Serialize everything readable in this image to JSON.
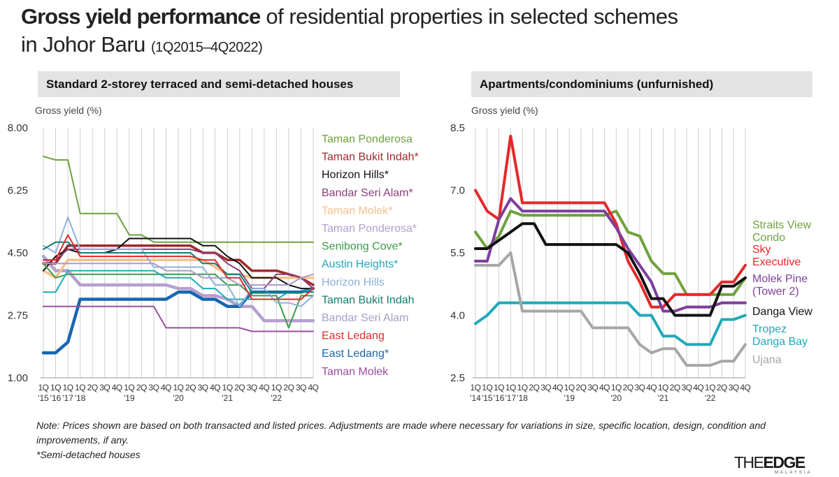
{
  "page": {
    "title_bold": "Gross yield performance",
    "title_rest": "of residential properties in selected schemes",
    "title_line2": "in Johor Baru",
    "title_period": "(1Q2015–4Q2022)",
    "notes": [
      "Note: Prices shown are based on both transacted and listed prices. Adjustments are made where necessary for variations in size, specific location, design, condition and improvements, if any.",
      "*Semi-detached houses"
    ],
    "brand": "THEEDGE",
    "brand_sub": "MALAYSIA"
  },
  "chart_data": [
    {
      "type": "line",
      "title": "Standard 2-storey terraced and semi-detached houses",
      "ylabel": "Gross yield (%)",
      "ylim": [
        1.0,
        8.0
      ],
      "yticks": [
        "8.00",
        "6.25",
        "4.50",
        "2.75",
        "1.00"
      ],
      "yticks_values": [
        8.0,
        6.25,
        4.5,
        2.75,
        1.0
      ],
      "x": [
        "1Q15",
        "1Q16",
        "1Q17",
        "1Q18",
        "2Q18",
        "3Q18",
        "4Q18",
        "1Q19",
        "2Q19",
        "3Q19",
        "4Q19",
        "1Q20",
        "2Q20",
        "3Q20",
        "4Q20",
        "1Q21",
        "2Q21",
        "3Q21",
        "4Q21",
        "1Q22",
        "2Q22",
        "3Q22",
        "4Q22"
      ],
      "xtick_quarters": [
        "1Q",
        "1Q",
        "1Q",
        "1Q",
        "2Q",
        "3Q",
        "4Q",
        "1Q",
        "2Q",
        "3Q",
        "4Q",
        "1Q",
        "2Q",
        "3Q",
        "4Q",
        "1Q",
        "2Q",
        "3Q",
        "4Q",
        "1Q",
        "2Q",
        "3Q",
        "4Q"
      ],
      "xtick_years": [
        "'15",
        "'16",
        "'17",
        "'18",
        "",
        "",
        "",
        "'19",
        "",
        "",
        "",
        "'20",
        "",
        "",
        "",
        "'21",
        "",
        "",
        "",
        "'22",
        "",
        "",
        ""
      ],
      "grid": true,
      "legend_position": "right",
      "series": [
        {
          "name": "Taman Ponderosa",
          "color": "#6fa13d",
          "width": 2,
          "values": [
            7.2,
            7.1,
            7.1,
            5.6,
            5.6,
            5.6,
            5.6,
            5.0,
            5.0,
            4.8,
            4.8,
            4.8,
            4.8,
            4.8,
            4.8,
            4.8,
            4.8,
            4.8,
            4.8,
            4.8,
            4.8,
            4.8,
            4.8
          ]
        },
        {
          "name": "Taman Bukit Indah*",
          "color": "#9e2a2b",
          "width": 3.5,
          "values": [
            4.2,
            4.2,
            4.7,
            4.7,
            4.7,
            4.7,
            4.7,
            4.7,
            4.7,
            4.7,
            4.7,
            4.7,
            4.7,
            4.5,
            4.5,
            4.3,
            4.3,
            4.0,
            4.0,
            4.0,
            3.9,
            3.8,
            3.6
          ]
        },
        {
          "name": "Horizon Hills*",
          "color": "#111111",
          "width": 2,
          "values": [
            4.0,
            4.4,
            4.6,
            4.5,
            4.5,
            4.5,
            4.6,
            4.9,
            4.9,
            4.9,
            4.9,
            4.9,
            4.9,
            4.7,
            4.7,
            4.4,
            4.2,
            3.8,
            3.8,
            3.8,
            3.6,
            3.5,
            3.5
          ]
        },
        {
          "name": "Bandar Seri Alam*",
          "color": "#8b3d7a",
          "width": 2,
          "values": [
            4.3,
            4.3,
            4.6,
            4.6,
            4.6,
            4.6,
            4.6,
            4.6,
            4.6,
            4.6,
            4.6,
            4.6,
            4.6,
            4.5,
            4.5,
            4.2,
            4.0,
            3.5,
            3.5,
            3.9,
            3.9,
            3.8,
            3.5
          ]
        },
        {
          "name": "Taman Molek*",
          "color": "#f7c18a",
          "width": 3.5,
          "values": [
            4.0,
            3.8,
            4.3,
            4.3,
            4.3,
            4.3,
            4.3,
            4.3,
            4.3,
            4.3,
            4.3,
            4.3,
            4.3,
            4.3,
            4.1,
            3.9,
            3.9,
            3.8,
            3.8,
            3.8,
            3.8,
            3.8,
            3.8
          ]
        },
        {
          "name": "Taman Ponderosa*",
          "color": "#b59fd0",
          "width": 4.5,
          "values": [
            4.4,
            4.0,
            4.0,
            3.6,
            3.6,
            3.6,
            3.6,
            3.6,
            3.6,
            3.6,
            3.6,
            3.5,
            3.5,
            3.3,
            3.3,
            3.2,
            3.0,
            3.0,
            2.6,
            2.6,
            2.6,
            2.6,
            2.6
          ]
        },
        {
          "name": "Senibong Cove*",
          "color": "#3e9b4a",
          "width": 2,
          "values": [
            4.2,
            3.8,
            3.9,
            3.9,
            3.9,
            3.9,
            3.9,
            3.9,
            3.9,
            3.9,
            3.9,
            3.9,
            3.9,
            3.9,
            3.9,
            3.6,
            3.6,
            3.3,
            3.3,
            3.3,
            2.4,
            3.3,
            3.3
          ]
        },
        {
          "name": "Austin Heights*",
          "color": "#20a9b9",
          "width": 2,
          "values": [
            3.4,
            3.4,
            4.0,
            4.0,
            4.0,
            4.0,
            4.0,
            4.0,
            4.0,
            4.0,
            3.8,
            3.8,
            3.8,
            3.5,
            3.5,
            3.2,
            3.2,
            3.2,
            3.2,
            3.2,
            3.4,
            3.4,
            3.5
          ]
        },
        {
          "name": "Horizon Hills",
          "color": "#8fb0d8",
          "width": 2,
          "values": [
            4.7,
            4.5,
            5.5,
            4.6,
            4.6,
            4.6,
            4.6,
            4.6,
            4.6,
            4.1,
            4.1,
            4.1,
            4.1,
            4.1,
            3.6,
            3.6,
            3.0,
            3.5,
            3.5,
            3.1,
            3.1,
            3.0,
            3.3
          ]
        },
        {
          "name": "Taman Bukit Indah",
          "color": "#127d6e",
          "width": 2,
          "values": [
            4.6,
            4.8,
            4.8,
            4.5,
            4.5,
            4.5,
            4.5,
            4.5,
            4.5,
            4.5,
            4.5,
            4.5,
            4.5,
            4.2,
            4.2,
            3.9,
            3.9,
            3.4,
            3.4,
            3.4,
            3.4,
            3.4,
            3.4
          ]
        },
        {
          "name": "Bandar Seri Alam",
          "color": "#a99cc8",
          "width": 2,
          "values": [
            4.2,
            4.2,
            4.2,
            4.2,
            4.2,
            4.2,
            4.2,
            4.2,
            4.2,
            4.2,
            4.0,
            4.0,
            4.0,
            3.8,
            3.8,
            3.8,
            3.6,
            3.6,
            3.6,
            3.6,
            3.6,
            3.8,
            3.9
          ]
        },
        {
          "name": "East Ledang",
          "color": "#e3292b",
          "width": 2,
          "values": [
            4.3,
            4.3,
            5.0,
            4.4,
            4.4,
            4.4,
            4.4,
            4.4,
            4.4,
            4.4,
            4.4,
            4.4,
            4.4,
            4.3,
            4.3,
            3.8,
            3.8,
            3.2,
            3.2,
            3.2,
            3.2,
            3.2,
            3.5
          ]
        },
        {
          "name": "East Ledang*",
          "color": "#1766b2",
          "width": 4.5,
          "values": [
            1.7,
            1.7,
            2.0,
            3.2,
            3.2,
            3.2,
            3.2,
            3.2,
            3.2,
            3.2,
            3.2,
            3.4,
            3.4,
            3.2,
            3.2,
            3.0,
            3.0,
            3.4,
            3.4,
            3.4,
            3.4,
            3.4,
            3.5
          ]
        },
        {
          "name": "Taman Molek",
          "color": "#9a4da0",
          "width": 2,
          "values": [
            3.0,
            3.0,
            3.0,
            3.0,
            3.0,
            3.0,
            3.0,
            3.0,
            3.0,
            3.0,
            2.4,
            2.4,
            2.4,
            2.4,
            2.4,
            2.4,
            2.4,
            2.3,
            2.3,
            2.3,
            2.3,
            2.3,
            2.3
          ]
        }
      ]
    },
    {
      "type": "line",
      "title": "Apartments/condominiums (unfurnished)",
      "ylabel": "Gross yield (%)",
      "ylim": [
        2.5,
        8.5
      ],
      "yticks": [
        "8.5",
        "7.0",
        "5.5",
        "4.0",
        "2.5"
      ],
      "yticks_values": [
        8.5,
        7.0,
        5.5,
        4.0,
        2.5
      ],
      "x": [
        "1Q14",
        "1Q15",
        "1Q16",
        "1Q17",
        "1Q18",
        "2Q18",
        "3Q18",
        "4Q18",
        "1Q19",
        "2Q19",
        "3Q19",
        "4Q19",
        "1Q20",
        "2Q20",
        "3Q20",
        "4Q20",
        "1Q21",
        "2Q21",
        "3Q21",
        "4Q21",
        "1Q22",
        "2Q22",
        "3Q22",
        "4Q22"
      ],
      "xtick_quarters": [
        "1Q",
        "1Q",
        "1Q",
        "1Q",
        "1Q",
        "2Q",
        "3Q",
        "4Q",
        "1Q",
        "2Q",
        "3Q",
        "4Q",
        "1Q",
        "2Q",
        "3Q",
        "4Q",
        "1Q",
        "2Q",
        "3Q",
        "4Q",
        "1Q",
        "2Q",
        "3Q",
        "4Q"
      ],
      "xtick_years": [
        "'14",
        "'15",
        "'16",
        "'17",
        "'18",
        "",
        "",
        "",
        "'19",
        "",
        "",
        "",
        "'20",
        "",
        "",
        "",
        "'21",
        "",
        "",
        "",
        "'22",
        "",
        "",
        ""
      ],
      "grid": true,
      "legend_position": "right",
      "series": [
        {
          "name": "Straits View Condo",
          "label_lines": [
            "Straits View",
            "Condo"
          ],
          "color": "#6fa13d",
          "width": 4,
          "values": [
            6.0,
            5.6,
            5.9,
            6.5,
            6.4,
            6.4,
            6.4,
            6.4,
            6.4,
            6.4,
            6.4,
            6.4,
            6.5,
            6.0,
            5.9,
            5.3,
            5.0,
            5.0,
            4.5,
            4.5,
            4.5,
            4.5,
            4.5,
            4.9
          ]
        },
        {
          "name": "Sky Executive",
          "label_lines": [
            "Sky",
            "Executive"
          ],
          "color": "#e3292b",
          "width": 4,
          "values": [
            7.0,
            6.5,
            6.3,
            8.3,
            6.7,
            6.7,
            6.7,
            6.7,
            6.7,
            6.7,
            6.7,
            6.7,
            6.2,
            5.3,
            4.8,
            4.2,
            4.2,
            4.5,
            4.5,
            4.5,
            4.5,
            4.8,
            4.8,
            5.2
          ]
        },
        {
          "name": "Molek Pine (Tower 2)",
          "label_lines": [
            "Molek Pine",
            "(Tower 2)"
          ],
          "color": "#7e3e9c",
          "width": 4,
          "values": [
            5.3,
            5.3,
            6.3,
            6.8,
            6.5,
            6.5,
            6.5,
            6.5,
            6.5,
            6.5,
            6.5,
            6.5,
            6.1,
            5.6,
            5.2,
            4.8,
            4.1,
            4.1,
            4.2,
            4.2,
            4.2,
            4.3,
            4.3,
            4.3
          ]
        },
        {
          "name": "Danga View",
          "label_lines": [
            "Danga View"
          ],
          "color": "#111111",
          "width": 4,
          "values": [
            5.6,
            5.6,
            5.8,
            6.0,
            6.2,
            6.2,
            5.7,
            5.7,
            5.7,
            5.7,
            5.7,
            5.7,
            5.7,
            5.5,
            5.0,
            4.4,
            4.4,
            4.0,
            4.0,
            4.0,
            4.0,
            4.7,
            4.7,
            4.9
          ]
        },
        {
          "name": "Tropez Danga Bay",
          "label_lines": [
            "Tropez",
            "Danga Bay"
          ],
          "color": "#20a9b9",
          "width": 4,
          "values": [
            3.8,
            4.0,
            4.3,
            4.3,
            4.3,
            4.3,
            4.3,
            4.3,
            4.3,
            4.3,
            4.3,
            4.3,
            4.3,
            4.3,
            4.0,
            4.0,
            3.5,
            3.5,
            3.3,
            3.3,
            3.3,
            3.9,
            3.9,
            4.0
          ]
        },
        {
          "name": "Ujana",
          "label_lines": [
            "Ujana"
          ],
          "color": "#a6a6a6",
          "width": 4,
          "values": [
            5.2,
            5.2,
            5.2,
            5.5,
            4.1,
            4.1,
            4.1,
            4.1,
            4.1,
            4.1,
            3.7,
            3.7,
            3.7,
            3.7,
            3.3,
            3.1,
            3.2,
            3.2,
            2.8,
            2.8,
            2.8,
            2.9,
            2.9,
            3.3
          ]
        }
      ]
    }
  ]
}
